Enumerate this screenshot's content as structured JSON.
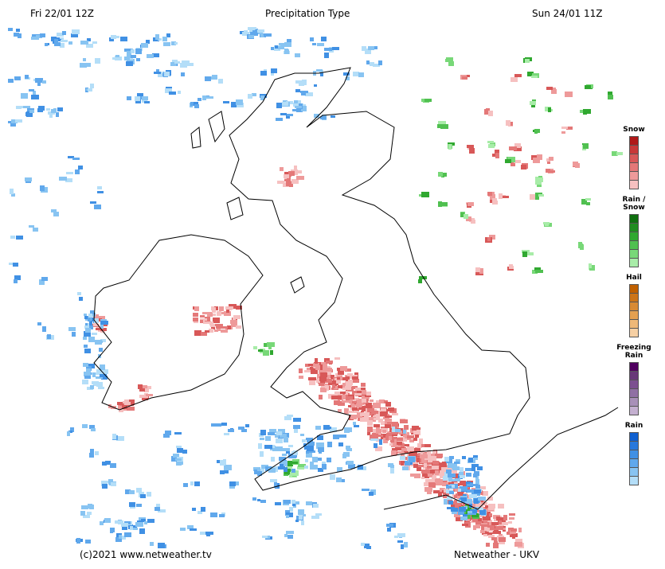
{
  "header": {
    "left": "Fri 22/01 12Z",
    "title": "Precipitation Type",
    "right": "Sun 24/01 11Z"
  },
  "legend": [
    {
      "label": "Snow",
      "colors": [
        "#b01818",
        "#c83838",
        "#d85858",
        "#e47878",
        "#ee9a9a",
        "#f6c0c0"
      ]
    },
    {
      "label": "Rain / Snow",
      "colors": [
        "#107010",
        "#208c20",
        "#30a830",
        "#50c050",
        "#78d878",
        "#a8eca8"
      ]
    },
    {
      "label": "Hail",
      "colors": [
        "#c06000",
        "#cc7418",
        "#d88a34",
        "#e4a050",
        "#eeb878",
        "#f6d0a4"
      ]
    },
    {
      "label": "Freezing Rain",
      "colors": [
        "#500060",
        "#683878",
        "#7c5090",
        "#9070a4",
        "#a890b8",
        "#c4b0d0"
      ]
    },
    {
      "label": "Rain",
      "colors": [
        "#1060d0",
        "#2878dc",
        "#4090e4",
        "#60a8ec",
        "#88c4f2",
        "#b4def8"
      ]
    }
  ],
  "footer": {
    "left": "(c)2021 www.netweather.tv",
    "right": "Netweather - UKV"
  }
}
